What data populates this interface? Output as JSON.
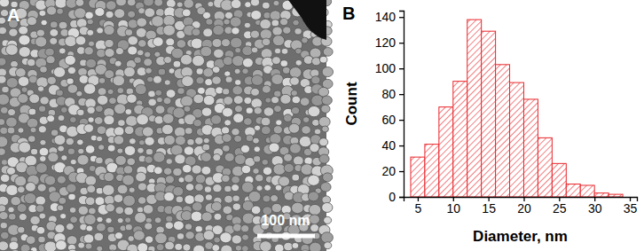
{
  "image_panel": {
    "label": "A",
    "scale_bar": "100 nm"
  },
  "chart_data": {
    "type": "histogram",
    "title": "B",
    "x_label": "Diameter, nm",
    "y_label": "Count",
    "bins": [
      4,
      6,
      8,
      10,
      12,
      14,
      16,
      18,
      20,
      22,
      24,
      26,
      28,
      30,
      32,
      34
    ],
    "counts": [
      31,
      41,
      70,
      90,
      138,
      129,
      103,
      89,
      76,
      46,
      26,
      10,
      9,
      3,
      2
    ],
    "color": "#e8262b",
    "xlim": [
      3,
      36
    ],
    "xticks": [
      5,
      10,
      15,
      20,
      25,
      30,
      35
    ],
    "ylim": [
      0,
      145
    ],
    "yticks": [
      0,
      20,
      40,
      60,
      80,
      100,
      120,
      140
    ],
    "grid": false
  }
}
